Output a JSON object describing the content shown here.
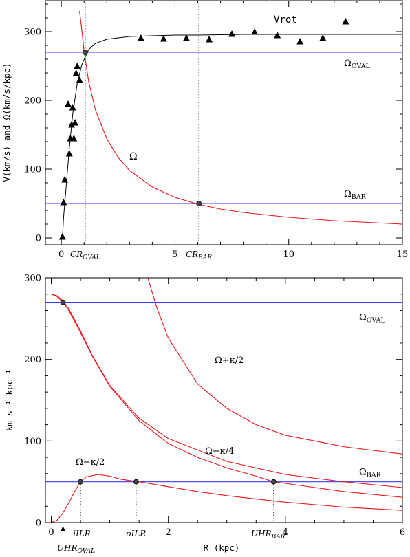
{
  "chart_data": [
    {
      "type": "line",
      "ylabel": "V(km/s) and Ω(km/s/kpc)",
      "xlim": [
        -0.7,
        15
      ],
      "ylim": [
        -10,
        345
      ],
      "x_ticks": [
        0,
        5,
        10,
        15
      ],
      "y_ticks": [
        0,
        100,
        200,
        300
      ],
      "series": [
        {
          "name": "Vrot",
          "x": [
            0.05,
            0.1,
            0.2,
            0.35,
            0.5,
            0.7,
            0.9,
            1.2,
            1.5,
            2,
            3,
            4,
            5,
            6,
            8,
            10,
            12,
            15
          ],
          "y": [
            0,
            30,
            70,
            130,
            180,
            225,
            252,
            274,
            283,
            289,
            293,
            294,
            295,
            295,
            296,
            296,
            296,
            296
          ]
        },
        {
          "name": "Ω",
          "x": [
            0.8,
            0.9,
            1.0,
            1.2,
            1.5,
            2,
            2.5,
            3,
            4,
            5,
            6,
            7,
            8,
            10,
            12,
            15
          ],
          "y": [
            330,
            303,
            272,
            228,
            186,
            144,
            117,
            98,
            74,
            59,
            49,
            42,
            37,
            30,
            25,
            20
          ]
        }
      ],
      "vrot_points": {
        "x": [
          0.05,
          0.1,
          0.15,
          0.3,
          0.35,
          0.4,
          0.45,
          0.5,
          0.55,
          0.6,
          0.65,
          0.7,
          0.8,
          3.5,
          4.5,
          5.5,
          6.5,
          7.5,
          8.5,
          9.5,
          10.5,
          11.5,
          12.5
        ],
        "y": [
          2,
          52,
          85,
          195,
          123,
          145,
          165,
          190,
          145,
          168,
          240,
          250,
          230,
          291,
          290,
          291,
          289,
          297,
          300,
          295,
          286,
          291,
          315
        ]
      },
      "hlines": [
        {
          "label_main": "Ω",
          "label_sub": "OVAL",
          "y": 270
        },
        {
          "label_main": "Ω",
          "label_sub": "BAR",
          "y": 50
        }
      ],
      "vlines": [
        {
          "label_main": "CR",
          "label_sub": "OVAL",
          "x": 1.05
        },
        {
          "label_main": "CR",
          "label_sub": "BAR",
          "x": 6.05
        }
      ],
      "markers": [
        {
          "x": 1.05,
          "y": 270
        },
        {
          "x": 6.05,
          "y": 50
        }
      ],
      "annotations": {
        "vrot": "Vrot",
        "omega": "Ω"
      }
    },
    {
      "type": "line",
      "xlabel": "R (kpc)",
      "ylabel": "km s⁻¹ kpc⁻¹",
      "xlim": [
        -0.1,
        6
      ],
      "ylim": [
        0,
        300
      ],
      "x_ticks": [
        0,
        2,
        4,
        6
      ],
      "y_ticks": [
        0,
        100,
        200,
        300
      ],
      "series": [
        {
          "name": "Ω",
          "x": [
            0,
            0.1,
            0.2,
            0.3,
            0.5,
            0.7,
            1,
            1.5,
            2,
            3,
            4,
            5,
            6
          ],
          "y": [
            280,
            278,
            272,
            262,
            235,
            205,
            168,
            128,
            103,
            75,
            59,
            50,
            43
          ]
        },
        {
          "name": "Ω+κ/2",
          "x": [
            1.65,
            1.8,
            2,
            2.5,
            3,
            3.5,
            4,
            5,
            6
          ],
          "y": [
            300,
            264,
            226,
            170,
            140,
            120,
            107,
            93,
            84
          ]
        },
        {
          "name": "Ω−κ/4",
          "x": [
            0,
            0.1,
            0.2,
            0.3,
            0.5,
            0.7,
            1,
            1.5,
            2,
            2.5,
            3,
            3.5,
            3.8,
            4,
            5,
            6
          ],
          "y": [
            280,
            277,
            270,
            260,
            233,
            204,
            167,
            125,
            97,
            80,
            67,
            57,
            50,
            48,
            38,
            31
          ]
        },
        {
          "name": "Ω−κ/2",
          "x": [
            0,
            0.1,
            0.2,
            0.3,
            0.4,
            0.5,
            0.6,
            0.8,
            1,
            1.2,
            1.5,
            2,
            2.5,
            3,
            4,
            5,
            6
          ],
          "y": [
            0,
            3,
            12,
            24,
            38,
            50,
            56,
            59,
            57,
            53,
            50,
            44,
            38,
            33,
            25,
            19,
            15
          ]
        }
      ],
      "hlines": [
        {
          "label_main": "Ω",
          "label_sub": "OVAL",
          "y": 270
        },
        {
          "label_main": "Ω",
          "label_sub": "BAR",
          "y": 50
        }
      ],
      "vlines": [
        {
          "label_main": "iILR",
          "label_sub": "",
          "x": 0.5
        },
        {
          "label_main": "oILR",
          "label_sub": "",
          "x": 1.45
        },
        {
          "label_main": "UHR",
          "label_sub": "BAR",
          "x": 3.8
        },
        {
          "label_main": "UHR",
          "label_sub": "OVAL",
          "x": 0.2
        }
      ],
      "markers": [
        {
          "x": 0.2,
          "y": 270
        },
        {
          "x": 0.5,
          "y": 50
        },
        {
          "x": 1.45,
          "y": 50
        },
        {
          "x": 3.8,
          "y": 50
        }
      ]
    }
  ]
}
